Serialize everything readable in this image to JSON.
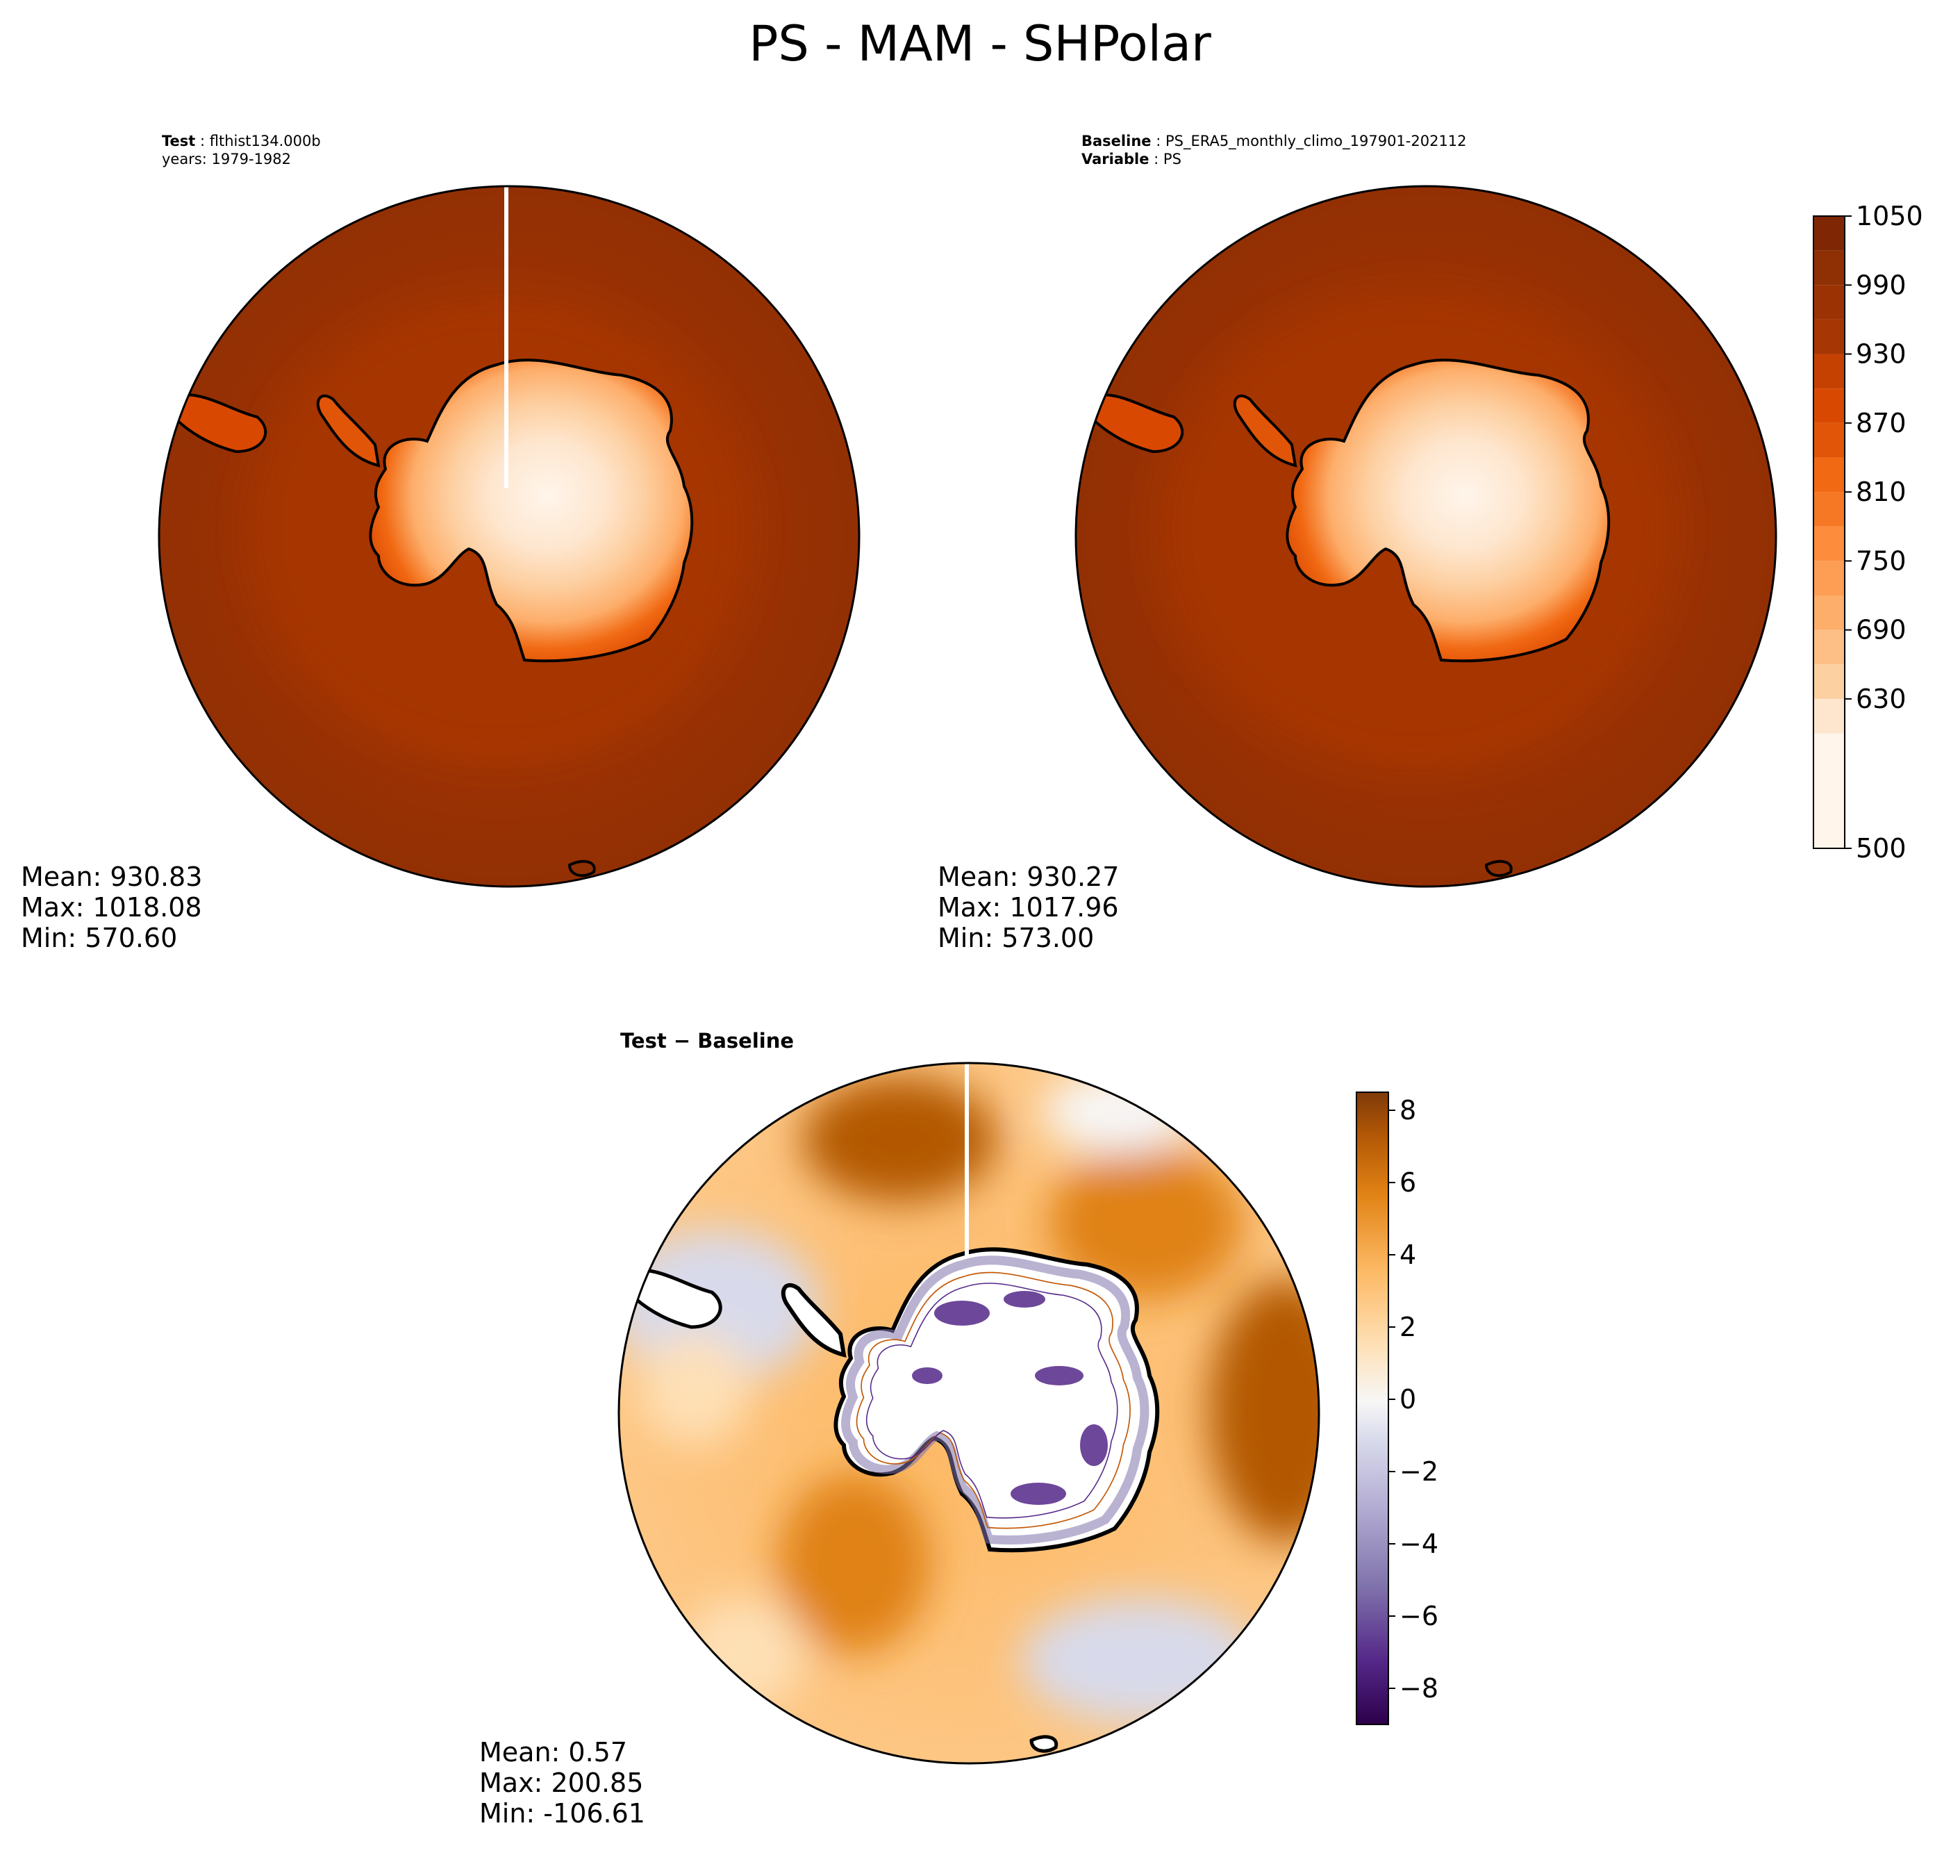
{
  "figure": {
    "title": "PS - MAM - SHPolar"
  },
  "panels": {
    "test": {
      "label_key": "Test",
      "label_value": "flthist134.000b",
      "years": "years: 1979-1982",
      "stats": {
        "mean": "Mean: 930.83",
        "max": "Max: 1018.08",
        "min": "Min: 570.60"
      }
    },
    "baseline": {
      "label_key": "Baseline",
      "label_value": "PS_ERA5_monthly_climo_197901-202112",
      "variable_key": "Variable",
      "variable_value": "PS",
      "stats": {
        "mean": "Mean: 930.27",
        "max": "Max: 1017.96",
        "min": "Min: 573.00"
      }
    },
    "difference": {
      "title": "Test − Baseline",
      "stats": {
        "mean": "Mean:  0.57",
        "max": "Max: 200.85",
        "min": "Min: -106.61"
      }
    }
  },
  "chart_data": [
    {
      "type": "heatmap",
      "name": "Test",
      "projection": "south-polar-stereographic",
      "variable": "PS",
      "mean": 930.83,
      "max": 1018.08,
      "min": 570.6,
      "colormap": "Oranges",
      "colorbar_shared_with": "Baseline"
    },
    {
      "type": "heatmap",
      "name": "Baseline",
      "projection": "south-polar-stereographic",
      "variable": "PS",
      "mean": 930.27,
      "max": 1017.96,
      "min": 573.0,
      "colormap": "Oranges",
      "colorbar": {
        "range": [
          500,
          1050
        ],
        "ticks": [
          500,
          630,
          690,
          750,
          810,
          870,
          930,
          990,
          1050
        ],
        "tick_labels": [
          "500",
          "630",
          "690",
          "750",
          "810",
          "870",
          "930",
          "990",
          "1050"
        ],
        "bounds": [
          500,
          600,
          630,
          660,
          690,
          720,
          750,
          780,
          810,
          840,
          870,
          900,
          930,
          960,
          990,
          1020,
          1050
        ],
        "colors": [
          "#fff5eb",
          "#fee6ce",
          "#fdd0a2",
          "#fdbf86",
          "#fdae6b",
          "#fd9e54",
          "#fd8d3c",
          "#f67824",
          "#f16913",
          "#e15508",
          "#d94801",
          "#c54102",
          "#a63603",
          "#9b3203",
          "#8f2f04",
          "#7f2704"
        ]
      }
    },
    {
      "type": "heatmap",
      "name": "Test − Baseline",
      "projection": "south-polar-stereographic",
      "mean": 0.57,
      "max": 200.85,
      "min": -106.61,
      "colormap": "PuOr_r",
      "colorbar": {
        "range": [
          -9,
          8.5
        ],
        "ticks": [
          -8,
          -6,
          -4,
          -2,
          0,
          2,
          4,
          6,
          8
        ],
        "tick_labels": [
          "−8",
          "−6",
          "−4",
          "−2",
          "0",
          "2",
          "4",
          "6",
          "8"
        ],
        "colors": [
          "#2d004b",
          "#542788",
          "#8073ac",
          "#b2abd2",
          "#d8daeb",
          "#f7f7f7",
          "#fee0b6",
          "#fdb863",
          "#e08214",
          "#b35806",
          "#7f3b08"
        ]
      }
    }
  ]
}
